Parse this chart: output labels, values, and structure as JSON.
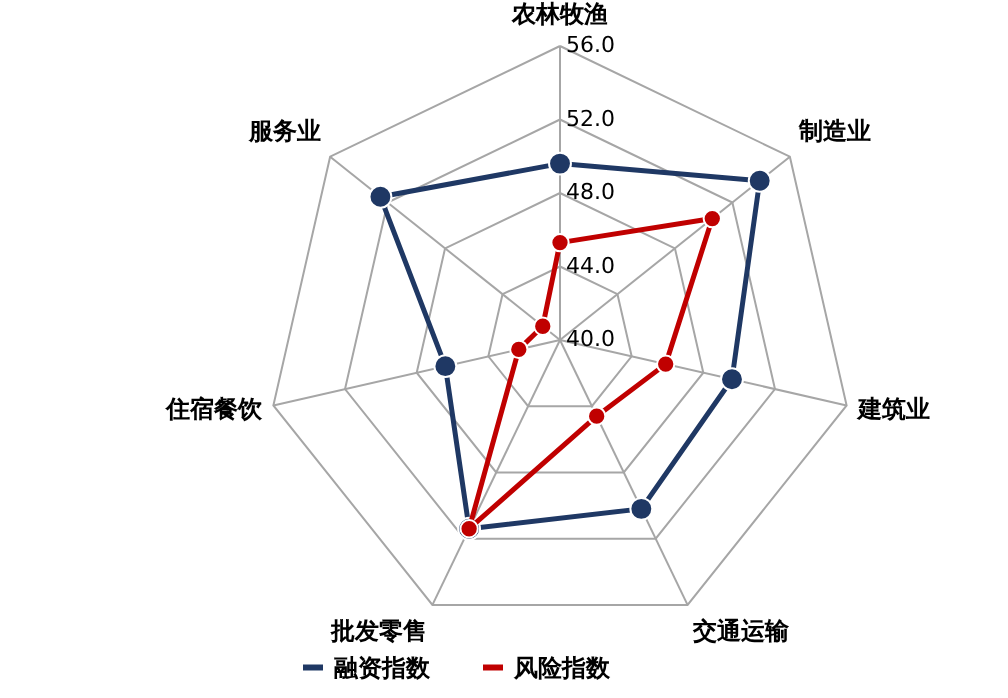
{
  "chart_data": {
    "type": "radar",
    "categories": [
      "农林牧渔",
      "制造业",
      "建筑业",
      "交通运输",
      "批发零售",
      "住宿餐饮",
      "服务业"
    ],
    "series": [
      {
        "name": "融资指数",
        "color": "#1f3864",
        "values": [
          49.6,
          53.9,
          49.6,
          50.2,
          51.4,
          46.4,
          52.5
        ]
      },
      {
        "name": "风险指数",
        "color": "#c00000",
        "values": [
          45.3,
          50.6,
          45.9,
          44.6,
          51.4,
          42.3,
          41.2
        ]
      }
    ],
    "ylim": [
      40,
      56
    ],
    "yticks": [
      {
        "value": 40,
        "label": "40.0"
      },
      {
        "value": 44,
        "label": "44.0"
      },
      {
        "value": 48,
        "label": "48.0"
      },
      {
        "value": 52,
        "label": "52.0"
      },
      {
        "value": 56,
        "label": "56.0"
      }
    ],
    "grid": true,
    "legend": "bottom",
    "marker": "circle",
    "line_style": "solid"
  }
}
